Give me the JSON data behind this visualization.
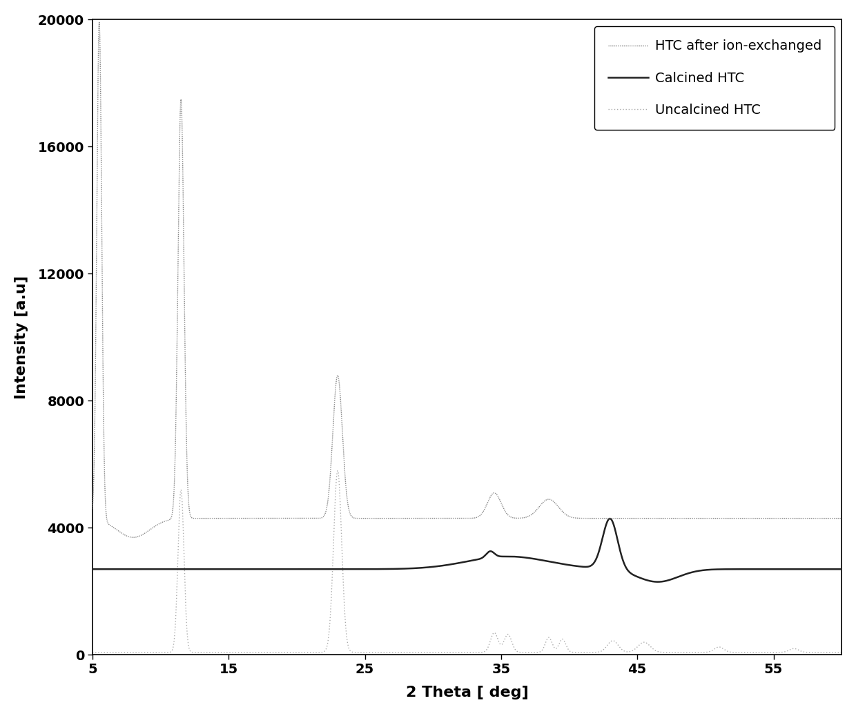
{
  "xlabel": "2 Theta [ deg]",
  "ylabel": "Intensity [a.u]",
  "xlim": [
    5,
    60
  ],
  "ylim": [
    0,
    20000
  ],
  "xticks": [
    5,
    15,
    25,
    35,
    45,
    55
  ],
  "yticks": [
    0,
    4000,
    8000,
    12000,
    16000,
    20000
  ],
  "legend_labels": [
    "Uncalcined HTC",
    "Calcined HTC",
    "HTC after ion-exchanged"
  ],
  "uncalcined_color": "#888888",
  "calcined_color": "#222222",
  "ion_color": "#aaaaaa",
  "background_color": "#ffffff",
  "figure_bg": "#ffffff",
  "border_color": "#aaaaaa",
  "font_size": 14
}
